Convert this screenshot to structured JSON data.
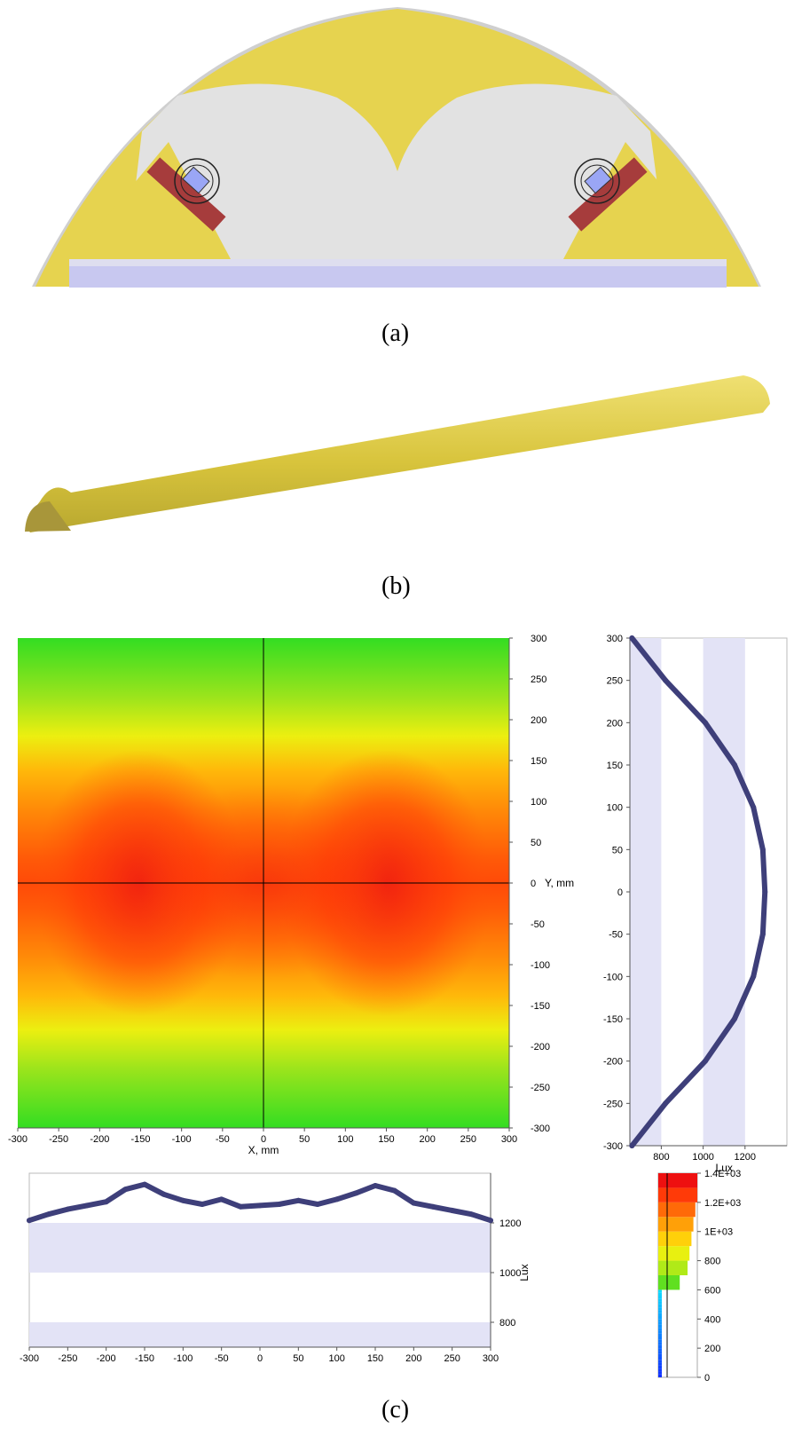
{
  "captions": {
    "a": "(a)",
    "b": "(b)",
    "c": "(c)"
  },
  "colors": {
    "housing": "#e6d34f",
    "housing_edge": "#c9c9c9",
    "inner": "#e2e2e2",
    "diffuser": "#c8c8f0",
    "board": "#a63c3c",
    "led": "#9aa6f5",
    "rod": "#d9c83f",
    "rod_end": "#a8963a",
    "band": "#e3e3f6",
    "marker": "#3e3f7a"
  },
  "chart_data": [
    {
      "type": "heatmap",
      "xlabel": "X, mm",
      "ylabel": "Y, mm",
      "xlim": [
        -300,
        300
      ],
      "ylim": [
        -300,
        300
      ],
      "x_ticks": [
        -300,
        -250,
        -200,
        -150,
        -100,
        -50,
        0,
        50,
        100,
        150,
        200,
        250,
        300
      ],
      "y_ticks": [
        300,
        250,
        200,
        150,
        100,
        50,
        0,
        -50,
        -100,
        -150,
        -200,
        -250,
        -300
      ],
      "peaks_x": [
        -150,
        150
      ],
      "value_range": [
        600,
        1400
      ]
    },
    {
      "type": "line",
      "name": "y-profile",
      "xlabel": "Lux",
      "xlim": [
        650,
        1400
      ],
      "x_ticks": [
        800,
        1000,
        1200
      ],
      "y_ticks": [
        300,
        250,
        200,
        150,
        100,
        50,
        0,
        -50,
        -100,
        -150,
        -200,
        -250,
        -300
      ],
      "ylim": [
        -300,
        300
      ],
      "y": [
        300,
        250,
        200,
        150,
        100,
        50,
        0,
        -50,
        -100,
        -150,
        -200,
        -250,
        -300
      ],
      "x": [
        660,
        820,
        1010,
        1150,
        1240,
        1285,
        1295,
        1285,
        1240,
        1150,
        1010,
        820,
        660
      ]
    },
    {
      "type": "line",
      "name": "x-profile",
      "ylabel": "Lux",
      "xlim": [
        -300,
        300
      ],
      "ylim": [
        700,
        1400
      ],
      "x_ticks": [
        -300,
        -250,
        -200,
        -150,
        -100,
        -50,
        0,
        50,
        100,
        150,
        200,
        250,
        300
      ],
      "y_ticks": [
        1200,
        1000,
        800
      ],
      "x": [
        -300,
        -275,
        -250,
        -225,
        -200,
        -175,
        -150,
        -125,
        -100,
        -75,
        -50,
        -25,
        0,
        25,
        50,
        75,
        100,
        125,
        150,
        175,
        200,
        225,
        250,
        275,
        300
      ],
      "y": [
        1210,
        1235,
        1255,
        1270,
        1285,
        1335,
        1355,
        1315,
        1290,
        1275,
        1295,
        1265,
        1270,
        1275,
        1290,
        1275,
        1295,
        1320,
        1350,
        1330,
        1280,
        1265,
        1250,
        1235,
        1210
      ]
    },
    {
      "type": "colorbar",
      "tick_labels": [
        "1.4E+03",
        "1.2E+03",
        "1E+03",
        "800",
        "600",
        "400",
        "200",
        "0"
      ],
      "values": [
        1400,
        1200,
        1000,
        800,
        600,
        400,
        200,
        0
      ]
    }
  ]
}
